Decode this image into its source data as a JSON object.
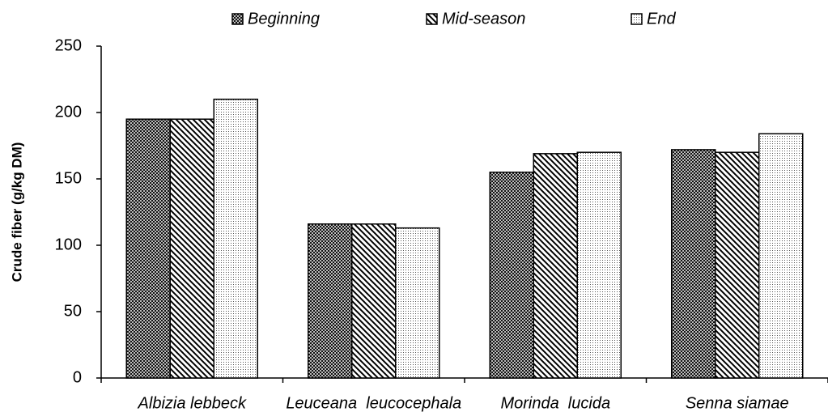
{
  "chart_data": {
    "type": "bar",
    "categories": [
      "Albizia lebbeck",
      "Leuceana  leucocephala",
      "Morinda  lucida",
      "Senna siamae"
    ],
    "series": [
      {
        "name": "Beginning",
        "color": "#000000",
        "values": [
          195,
          116,
          155,
          172
        ]
      },
      {
        "name": "Mid-season",
        "color": "#000000",
        "values": [
          195,
          116,
          169,
          170
        ]
      },
      {
        "name": "End",
        "color": "#000000",
        "values": [
          210,
          113,
          170,
          184
        ]
      }
    ],
    "y_label": "Crude fiber (g/kg DM)",
    "ylim": [
      0,
      250
    ],
    "yticks": [
      0,
      50,
      100,
      150,
      200,
      250
    ],
    "grid": false
  }
}
